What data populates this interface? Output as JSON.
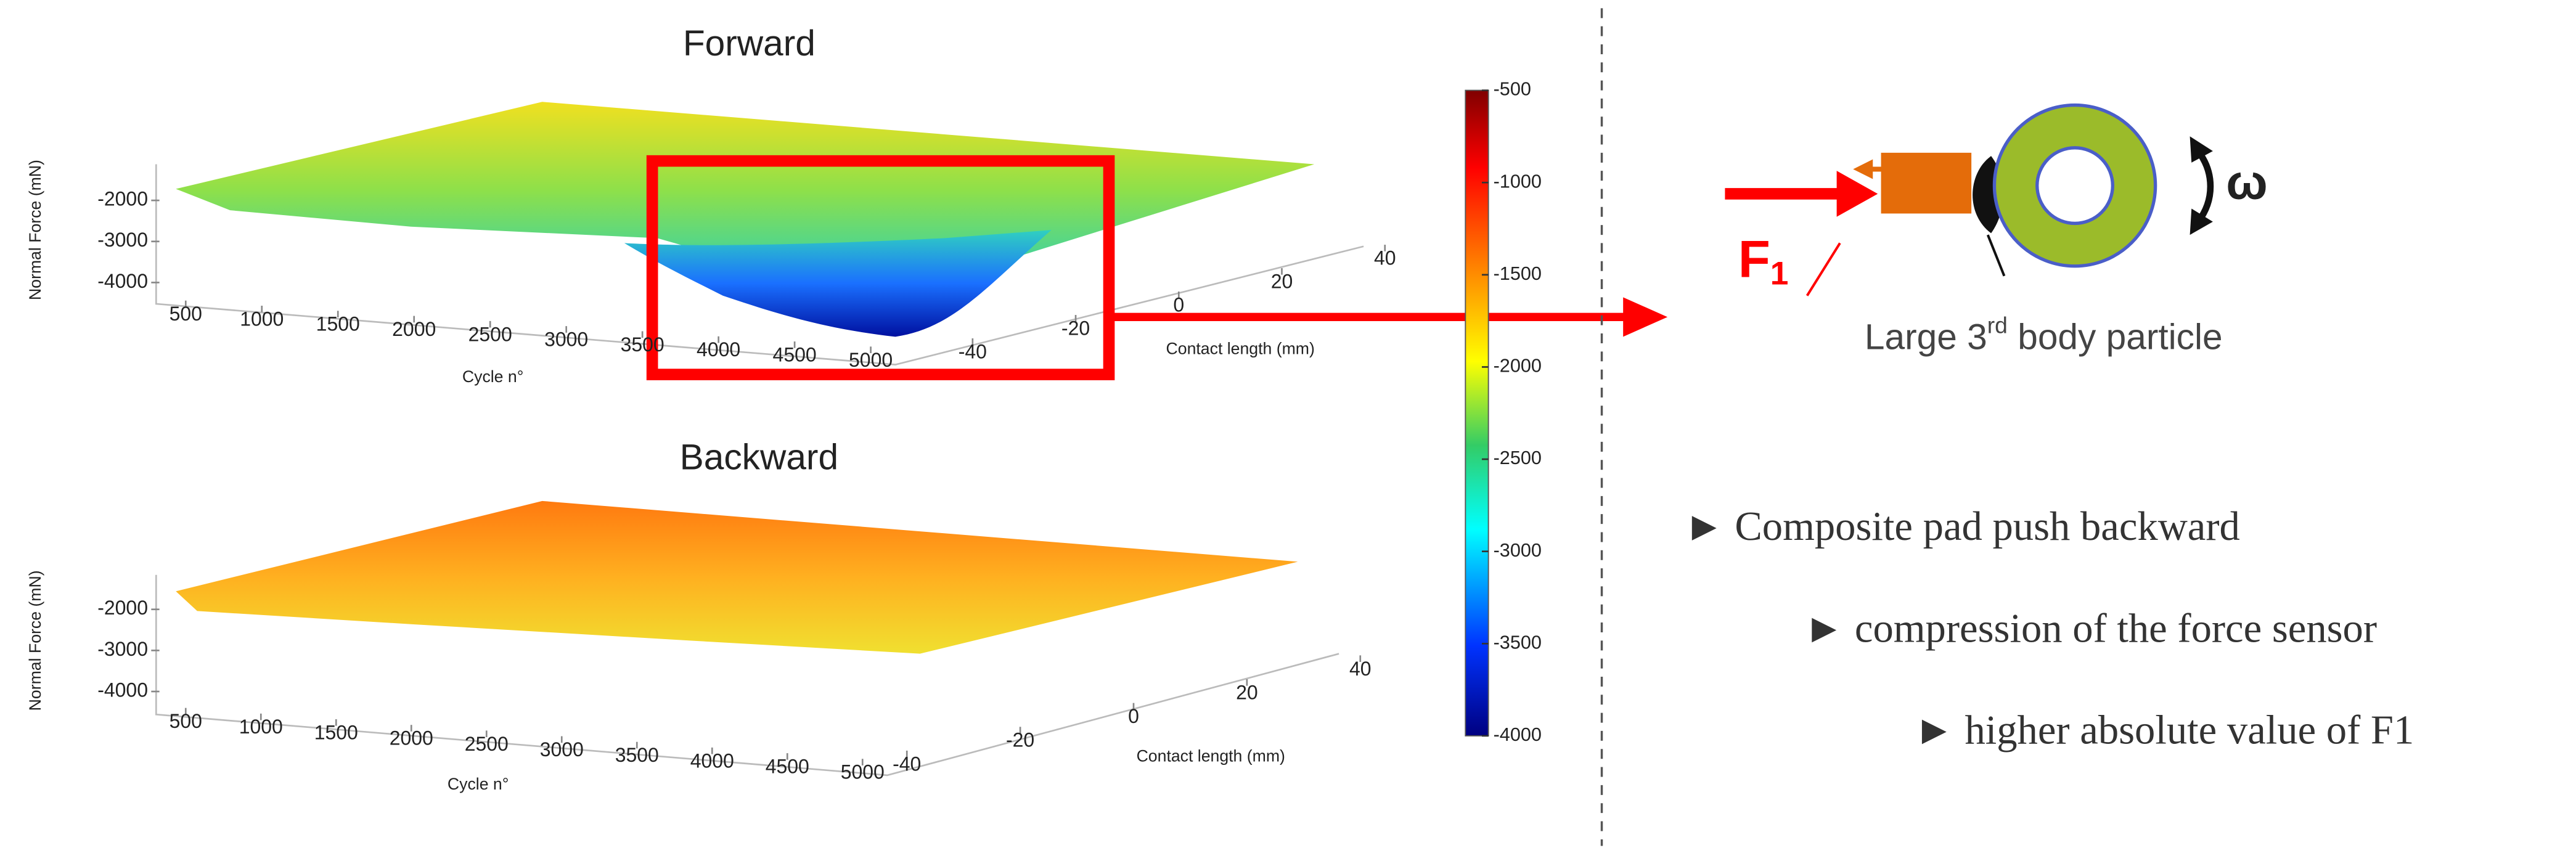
{
  "chart_data": [
    {
      "type": "surface",
      "title": "Forward",
      "zlabel": "Normal Force (mN)",
      "xlabel": "Cycle n°",
      "ylabel": "Contact length (mm)",
      "xticks": [
        500,
        1000,
        1500,
        2000,
        2500,
        3000,
        3500,
        4000,
        4500,
        5000
      ],
      "yticks": [
        -40,
        -20,
        0,
        20,
        40
      ],
      "zticks": [
        -2000,
        -3000,
        -4000
      ]
    },
    {
      "type": "surface",
      "title": "Backward",
      "zlabel": "Normal Force (mN)",
      "xlabel": "Cycle n°",
      "ylabel": "Contact length (mm)",
      "xticks": [
        500,
        1000,
        1500,
        2000,
        2500,
        3000,
        3500,
        4000,
        4500,
        5000
      ],
      "yticks": [
        -40,
        -20,
        0,
        20,
        40
      ],
      "zticks": [
        -2000,
        -3000,
        -4000
      ]
    }
  ],
  "colorbar": {
    "lim": [
      -4000,
      -500
    ],
    "ticks": [
      -500,
      -1000,
      -1500,
      -2000,
      -2500,
      -3000,
      -3500,
      -4000
    ]
  },
  "diagram": {
    "force": "F",
    "force_sub": "1",
    "omega": "ω",
    "particle": "Large 3",
    "particle_sup": "rd",
    "particle_rest": " body particle"
  },
  "bullets": [
    "► Composite pad push backward",
    "► compression of the force sensor",
    "► higher absolute value of F1"
  ]
}
